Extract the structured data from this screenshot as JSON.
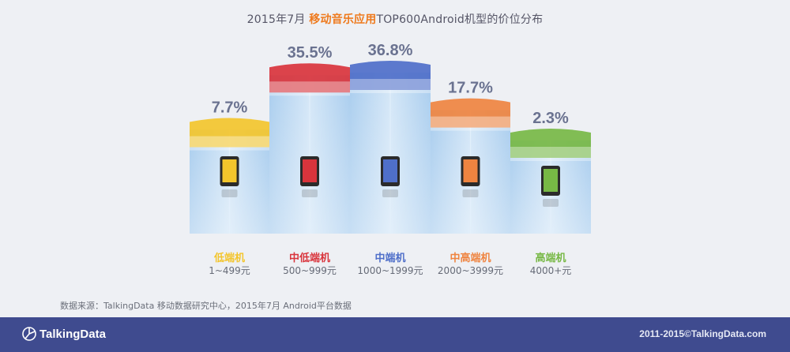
{
  "title": {
    "prefix": "2015年7月 ",
    "highlight": "移动音乐应用",
    "suffix": "TOP600Android机型的价位分布"
  },
  "chart_data": {
    "type": "bar",
    "title": "2015年7月 移动音乐应用TOP600Android机型的价位分布",
    "categories": [
      "低端机",
      "中低端机",
      "中端机",
      "中高端机",
      "高端机"
    ],
    "price_ranges": [
      "1~499元",
      "500~999元",
      "1000~1999元",
      "2000~3999元",
      "4000+元"
    ],
    "values": [
      7.7,
      35.5,
      36.8,
      17.7,
      2.3
    ],
    "value_labels": [
      "7.7%",
      "35.5%",
      "36.8%",
      "17.7%",
      "2.3%"
    ],
    "colors": [
      "#f3c52c",
      "#d9343c",
      "#4f6fc9",
      "#ef8440",
      "#77b845"
    ],
    "unit": "%",
    "icons": [
      "two-phones-icon",
      "red-phone-icon",
      "blue-phone-icon",
      "black-phone-icon",
      "gold-phone-icon"
    ]
  },
  "source": "数据来源：TalkingData 移动数据研究中心，2015年7月 Android平台数据",
  "footer": {
    "logo_text": "TalkingData",
    "copyright": "2011-2015©TalkingData.com"
  }
}
